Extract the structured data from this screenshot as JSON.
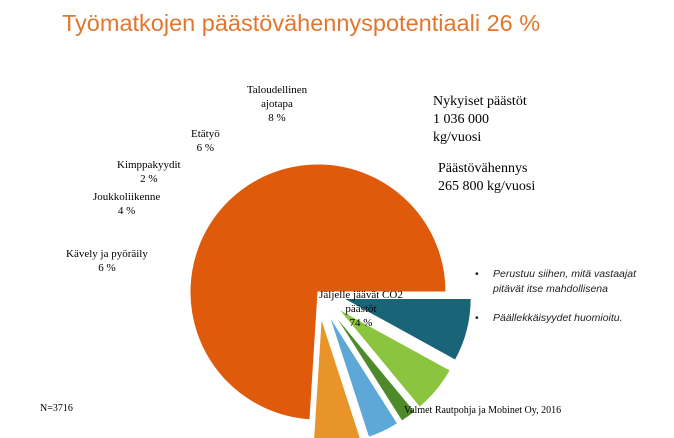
{
  "title": "Työmatkojen päästövähennyspotentiaali 26 %",
  "stats": {
    "current_label": "Nykyiset päästöt",
    "current_value": "1 036 000",
    "current_unit": "kg/vuosi",
    "reduction_label": "Päästövähennys",
    "reduction_value": "265 800 kg/vuosi"
  },
  "notes": [
    "Perustuu siihen, mitä vastaajat pitävät itse mahdollisena",
    "Päällekkäisyydet huomioitu."
  ],
  "bullet_glyph": "•",
  "sample_size": "N=3716",
  "source": "Valmet Rautpohja ja Mobinet Oy, 2016",
  "chart_data": {
    "type": "pie",
    "title": "",
    "series": [
      {
        "name": "Jäljelle jäävät CO2 päästöt",
        "label_lines": [
          "Jäljelle jäävät CO2",
          "päästöt"
        ],
        "value_label": "74 %",
        "value": 74,
        "color": "#E05A0C"
      },
      {
        "name": "Kävely ja pyöräily",
        "label_lines": [
          "Kävely ja pyöräily"
        ],
        "value_label": "6 %",
        "value": 6,
        "color": "#E89428"
      },
      {
        "name": "Joukkoliikenne",
        "label_lines": [
          "Joukkoliikenne"
        ],
        "value_label": "4 %",
        "value": 4,
        "color": "#5DA8D6"
      },
      {
        "name": "Kimppakyydit",
        "label_lines": [
          "Kimppakyydit"
        ],
        "value_label": "2 %",
        "value": 2,
        "color": "#4C8A2A"
      },
      {
        "name": "Etätyö",
        "label_lines": [
          "Etätyö"
        ],
        "value_label": "6 %",
        "value": 6,
        "color": "#8BC540"
      },
      {
        "name": "Taloudellinen ajotapa",
        "label_lines": [
          "Taloudellinen",
          "ajotapa"
        ],
        "value_label": "8 %",
        "value": 8,
        "color": "#1A6478"
      }
    ],
    "exploded": [
      "Kävely ja pyöräily",
      "Joukkoliikenne",
      "Kimppakyydit",
      "Etätyö",
      "Taloudellinen ajotapa"
    ],
    "start_angle_deg": 0,
    "direction": "counter-clockwise",
    "legend": "none"
  }
}
